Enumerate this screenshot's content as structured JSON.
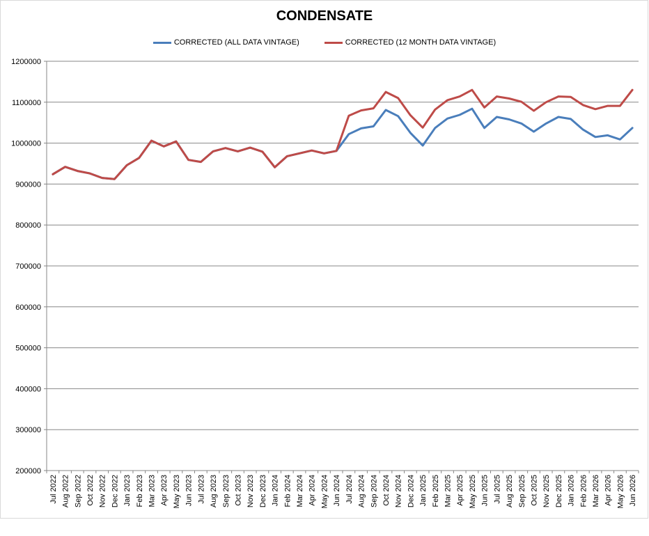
{
  "chart_data": {
    "type": "line",
    "title": "CONDENSATE",
    "xlabel": "",
    "ylabel": "",
    "ylim": [
      200000,
      1200000
    ],
    "yticks": [
      200000,
      300000,
      400000,
      500000,
      600000,
      700000,
      800000,
      900000,
      1000000,
      1100000,
      1200000
    ],
    "grid": "horizontal",
    "legend_position": "top-center",
    "categories": [
      "Jul 2022",
      "Aug 2022",
      "Sep 2022",
      "Oct 2022",
      "Nov 2022",
      "Dec 2022",
      "Jan 2023",
      "Feb 2023",
      "Mar 2023",
      "Apr 2023",
      "May 2023",
      "Jun 2023",
      "Jul 2023",
      "Aug 2023",
      "Sep 2023",
      "Oct 2023",
      "Nov 2023",
      "Dec 2023",
      "Jan 2024",
      "Feb 2024",
      "Mar 2024",
      "Apr 2024",
      "May 2024",
      "Jun 2024",
      "Jul 2024",
      "Aug 2024",
      "Sep 2024",
      "Oct 2024",
      "Nov 2024",
      "Dec 2024",
      "Jan 2025",
      "Feb 2025",
      "Mar 2025",
      "Apr 2025",
      "May 2025",
      "Jun 2025",
      "Jul 2025",
      "Aug 2025",
      "Sep 2025",
      "Oct 2025",
      "Nov 2025",
      "Dec 2025",
      "Jan 2026",
      "Feb 2026",
      "Mar 2026",
      "Apr 2026",
      "May 2026",
      "Jun 2026"
    ],
    "series": [
      {
        "name": "CORRECTED (ALL DATA VINTAGE)",
        "color": "#4a7ebb",
        "values": [
          924000,
          942000,
          932000,
          926000,
          915000,
          912000,
          946000,
          964000,
          1006000,
          992000,
          1004000,
          959000,
          954000,
          980000,
          988000,
          980000,
          989000,
          979000,
          941000,
          968000,
          975000,
          982000,
          975000,
          981000,
          1022000,
          1036000,
          1041000,
          1081000,
          1066000,
          1025000,
          994000,
          1037000,
          1060000,
          1069000,
          1084000,
          1037000,
          1064000,
          1058000,
          1048000,
          1028000,
          1048000,
          1064000,
          1059000,
          1033000,
          1015000,
          1019000,
          1009000,
          1037000
        ]
      },
      {
        "name": "CORRECTED (12 MONTH DATA VINTAGE)",
        "color": "#be4b48",
        "values": [
          924000,
          942000,
          932000,
          926000,
          915000,
          912000,
          946000,
          964000,
          1006000,
          992000,
          1004000,
          959000,
          954000,
          980000,
          988000,
          980000,
          989000,
          979000,
          941000,
          968000,
          975000,
          982000,
          975000,
          981000,
          1067000,
          1080000,
          1085000,
          1125000,
          1110000,
          1068000,
          1038000,
          1082000,
          1105000,
          1114000,
          1130000,
          1087000,
          1114000,
          1109000,
          1101000,
          1079000,
          1100000,
          1114000,
          1113000,
          1093000,
          1083000,
          1091000,
          1091000,
          1130000
        ]
      }
    ]
  }
}
